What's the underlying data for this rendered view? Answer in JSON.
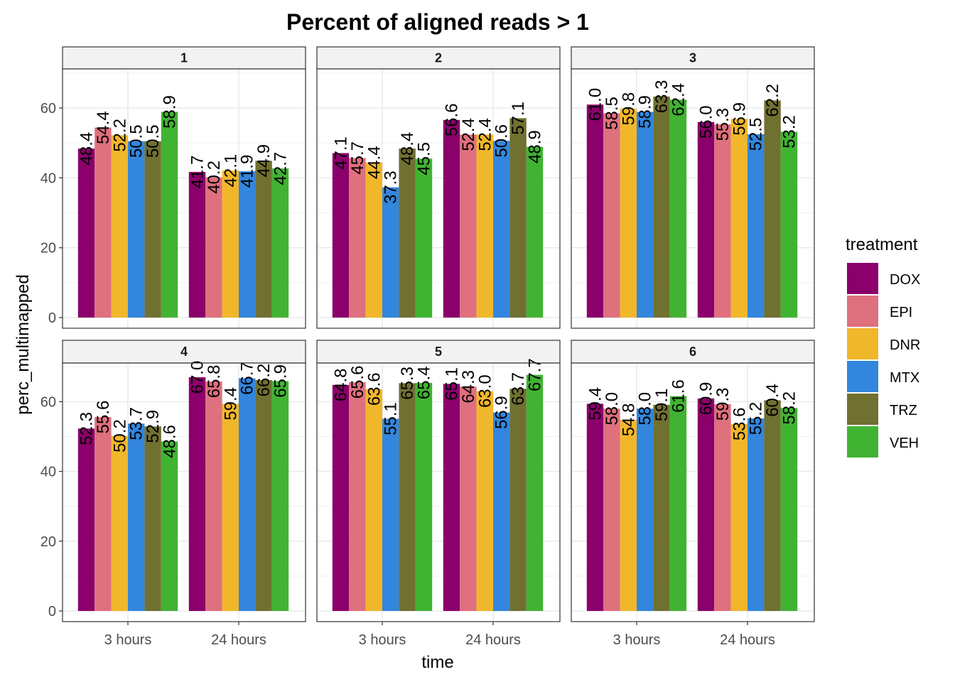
{
  "chart_data": {
    "type": "bar",
    "title": "Percent of aligned reads > 1",
    "xlabel": "time",
    "ylabel": "perc_multimapped",
    "ylim": [
      0,
      70
    ],
    "yticks": [
      0,
      20,
      40,
      60
    ],
    "grid": true,
    "facet_layout": "2 rows x 3 columns",
    "legend": {
      "title": "treatment",
      "position": "right"
    },
    "categories": [
      "3 hours",
      "24 hours"
    ],
    "treatments": [
      {
        "name": "DOX",
        "color": "#8B006B"
      },
      {
        "name": "EPI",
        "color": "#DF707E"
      },
      {
        "name": "DNR",
        "color": "#F1B72B"
      },
      {
        "name": "MTX",
        "color": "#3386DD"
      },
      {
        "name": "TRZ",
        "color": "#707031"
      },
      {
        "name": "VEH",
        "color": "#41B333"
      }
    ],
    "panels": [
      {
        "label": "1",
        "values": {
          "3 hours": [
            48.4,
            54.4,
            52.2,
            50.5,
            50.5,
            58.9
          ],
          "24 hours": [
            41.7,
            40.2,
            42.1,
            41.9,
            44.9,
            42.7
          ]
        }
      },
      {
        "label": "2",
        "values": {
          "3 hours": [
            47.1,
            45.7,
            44.4,
            37.3,
            48.4,
            45.5
          ],
          "24 hours": [
            56.6,
            52.4,
            52.4,
            50.6,
            57.1,
            48.9
          ]
        }
      },
      {
        "label": "3",
        "values": {
          "3 hours": [
            61.0,
            58.5,
            59.8,
            58.9,
            63.3,
            62.4
          ],
          "24 hours": [
            56.0,
            55.3,
            56.9,
            52.5,
            62.2,
            53.2
          ]
        }
      },
      {
        "label": "4",
        "values": {
          "3 hours": [
            52.3,
            55.6,
            50.2,
            53.7,
            52.9,
            48.6
          ],
          "24 hours": [
            67.0,
            65.8,
            59.4,
            66.7,
            66.2,
            65.9
          ]
        }
      },
      {
        "label": "5",
        "values": {
          "3 hours": [
            64.8,
            65.6,
            63.6,
            55.1,
            65.3,
            65.4
          ],
          "24 hours": [
            65.1,
            64.3,
            63.0,
            56.9,
            63.7,
            67.7
          ]
        }
      },
      {
        "label": "6",
        "values": {
          "3 hours": [
            59.4,
            58.0,
            54.8,
            58.0,
            59.1,
            61.6
          ],
          "24 hours": [
            60.9,
            59.3,
            53.6,
            55.2,
            60.4,
            58.2
          ]
        }
      }
    ]
  }
}
